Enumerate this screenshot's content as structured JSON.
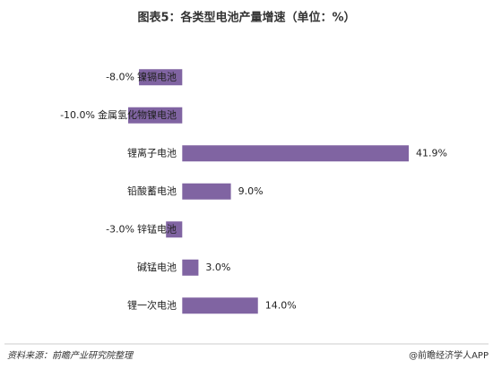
{
  "chart_data": {
    "type": "hbar",
    "title": "图表5：各类型电池产量增速（单位：%）",
    "categories": [
      "镍镉电池",
      "金属氢化物镍电池",
      "锂离子电池",
      "铅酸蓄电池",
      "锌锰电池",
      "碱锰电池",
      "锂一次电池"
    ],
    "values": [
      -8.0,
      -10.0,
      41.9,
      9.0,
      -3.0,
      3.0,
      14.0
    ],
    "value_labels": [
      "-8.0%",
      "-10.0%",
      "41.9%",
      "9.0%",
      "-3.0%",
      "3.0%",
      "14.0%"
    ],
    "color": "#8064a2"
  },
  "footer": {
    "source": "资料来源：前瞻产业研究院整理",
    "credit": "@前瞻经济学人APP"
  }
}
